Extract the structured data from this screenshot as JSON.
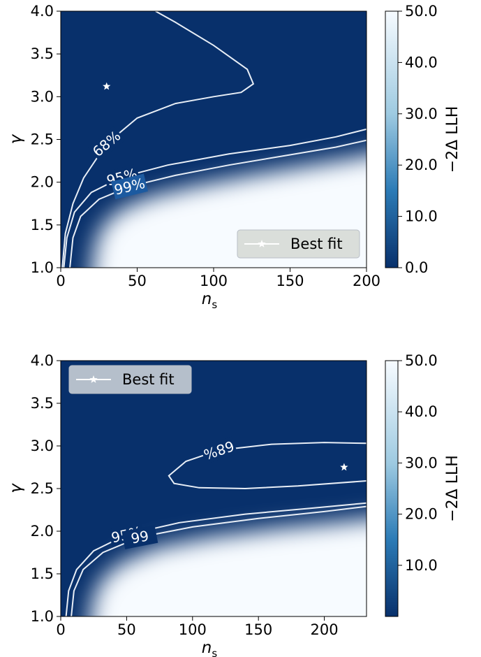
{
  "chart_data": [
    {
      "type": "heatmap",
      "xlabel": "n",
      "xlabel_sub": "s",
      "ylabel": "γ",
      "xlim": [
        0,
        200
      ],
      "ylim": [
        1.0,
        4.0
      ],
      "xticks": [
        "0",
        "50",
        "100",
        "150",
        "200"
      ],
      "yticks": [
        "1.0",
        "1.5",
        "2.0",
        "2.5",
        "3.0",
        "3.5",
        "4.0"
      ],
      "colorbar": {
        "label": "−2Δ LLH",
        "range": [
          0,
          50
        ],
        "ticks": [
          "0.0",
          "10.0",
          "20.0",
          "30.0",
          "40.0",
          "50.0"
        ],
        "color_low": "#08306b",
        "color_high": "#f7fbff"
      },
      "best_fit": {
        "x": 30,
        "y": 3.12
      },
      "legend": {
        "label": "Best fit",
        "position": "lower right"
      },
      "contours": [
        {
          "label": "68%",
          "points": [
            [
              1,
              1.0
            ],
            [
              3,
              1.4
            ],
            [
              8,
              1.75
            ],
            [
              15,
              2.05
            ],
            [
              30,
              2.45
            ],
            [
              50,
              2.75
            ],
            [
              75,
              2.92
            ],
            [
              100,
              3.0
            ],
            [
              118,
              3.05
            ],
            [
              126,
              3.15
            ],
            [
              122,
              3.32
            ],
            [
              100,
              3.6
            ],
            [
              75,
              3.87
            ],
            [
              62,
              4.0
            ]
          ]
        },
        {
          "label": "95%",
          "points": [
            [
              2,
              1.0
            ],
            [
              4,
              1.35
            ],
            [
              9,
              1.65
            ],
            [
              20,
              1.88
            ],
            [
              40,
              2.06
            ],
            [
              70,
              2.2
            ],
            [
              110,
              2.33
            ],
            [
              150,
              2.43
            ],
            [
              180,
              2.53
            ],
            [
              200,
              2.62
            ]
          ]
        },
        {
          "label": "99%",
          "points": [
            [
              6,
              1.0
            ],
            [
              8,
              1.35
            ],
            [
              13,
              1.6
            ],
            [
              25,
              1.8
            ],
            [
              45,
              1.95
            ],
            [
              75,
              2.08
            ],
            [
              110,
              2.2
            ],
            [
              150,
              2.32
            ],
            [
              180,
              2.41
            ],
            [
              200,
              2.49
            ]
          ]
        }
      ]
    },
    {
      "type": "heatmap",
      "xlabel": "n",
      "xlabel_sub": "s",
      "ylabel": "γ",
      "xlim": [
        0,
        232
      ],
      "ylim": [
        1.0,
        4.0
      ],
      "xticks": [
        "0",
        "50",
        "100",
        "150",
        "200"
      ],
      "yticks": [
        "1.0",
        "1.5",
        "2.0",
        "2.5",
        "3.0",
        "3.5",
        "4.0"
      ],
      "colorbar": {
        "label": "−2Δ LLH",
        "range": [
          0,
          50
        ],
        "ticks": [
          "10.0",
          "20.0",
          "30.0",
          "40.0",
          "50.0"
        ],
        "color_low": "#08306b",
        "color_high": "#f7fbff"
      },
      "best_fit": {
        "x": 215,
        "y": 2.75
      },
      "legend": {
        "label": "Best fit",
        "position": "upper left"
      },
      "contours": [
        {
          "label": "68%",
          "points": [
            [
              232,
              3.03
            ],
            [
              200,
              3.04
            ],
            [
              160,
              3.02
            ],
            [
              120,
              2.95
            ],
            [
              95,
              2.82
            ],
            [
              82,
              2.65
            ],
            [
              86,
              2.56
            ],
            [
              105,
              2.51
            ],
            [
              140,
              2.5
            ],
            [
              180,
              2.53
            ],
            [
              232,
              2.59
            ]
          ]
        },
        {
          "label": "95%",
          "points": [
            [
              4,
              1.0
            ],
            [
              6,
              1.3
            ],
            [
              12,
              1.55
            ],
            [
              25,
              1.77
            ],
            [
              50,
              1.96
            ],
            [
              90,
              2.1
            ],
            [
              140,
              2.2
            ],
            [
              190,
              2.27
            ],
            [
              232,
              2.33
            ]
          ]
        },
        {
          "label": "99",
          "points": [
            [
              8,
              1.0
            ],
            [
              10,
              1.3
            ],
            [
              17,
              1.55
            ],
            [
              32,
              1.75
            ],
            [
              60,
              1.93
            ],
            [
              100,
              2.05
            ],
            [
              150,
              2.15
            ],
            [
              200,
              2.23
            ],
            [
              232,
              2.29
            ]
          ]
        }
      ]
    }
  ]
}
